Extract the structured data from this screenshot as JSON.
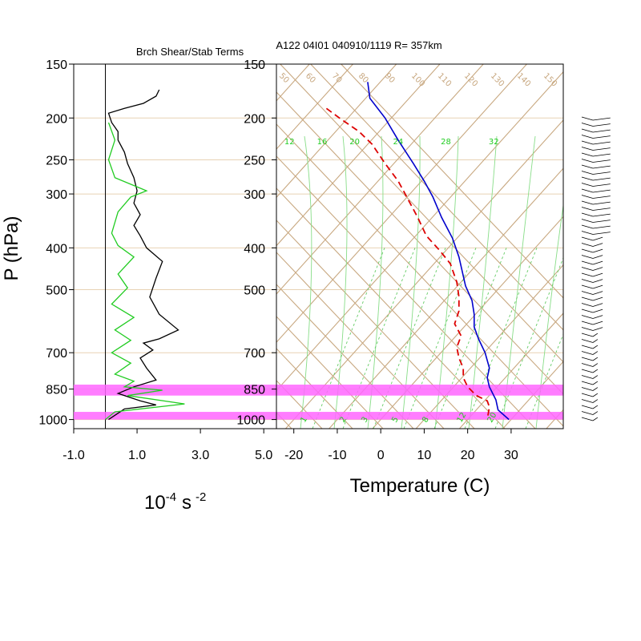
{
  "chart_data": [
    {
      "type": "line",
      "title": "Brch Shear/Stab Terms",
      "xlabel_base": "10",
      "xlabel_exp": "-4",
      "xlabel_unit": "s",
      "xlabel_unit_exp": "-2",
      "ylabel": "P (hPa)",
      "xlim": [
        -1.0,
        5.4
      ],
      "xticks": [
        "-1.0",
        "1.0",
        "3.0",
        "5.0"
      ],
      "xtick_values": [
        -1.0,
        1.0,
        3.0,
        5.0
      ],
      "pressure_ticks": [
        "150",
        "200",
        "250",
        "300",
        "400",
        "500",
        "700",
        "850",
        "1000"
      ],
      "pressure_values": [
        150,
        200,
        250,
        300,
        400,
        500,
        700,
        850,
        1000
      ],
      "grid": true,
      "series": [
        {
          "color": "#000000",
          "points": [
            [
              1.7,
              172
            ],
            [
              1.6,
              178
            ],
            [
              1.2,
              185
            ],
            [
              0.6,
              190
            ],
            [
              0.1,
              195
            ],
            [
              0.2,
              205
            ],
            [
              0.4,
              215
            ],
            [
              0.4,
              225
            ],
            [
              0.6,
              240
            ],
            [
              0.7,
              255
            ],
            [
              0.9,
              275
            ],
            [
              1.0,
              295
            ],
            [
              0.9,
              315
            ],
            [
              1.1,
              335
            ],
            [
              0.9,
              355
            ],
            [
              1.1,
              375
            ],
            [
              1.3,
              400
            ],
            [
              1.8,
              430
            ],
            [
              1.6,
              470
            ],
            [
              1.4,
              520
            ],
            [
              1.7,
              570
            ],
            [
              2.3,
              620
            ],
            [
              1.7,
              650
            ],
            [
              1.2,
              665
            ],
            [
              1.5,
              690
            ],
            [
              1.1,
              720
            ],
            [
              1.3,
              760
            ],
            [
              1.6,
              810
            ],
            [
              0.9,
              840
            ],
            [
              0.4,
              870
            ],
            [
              1.1,
              905
            ],
            [
              1.6,
              925
            ],
            [
              0.6,
              945
            ],
            [
              0.1,
              1000
            ]
          ]
        },
        {
          "color": "#22cc22",
          "points": [
            [
              0.1,
              205
            ],
            [
              0.3,
              225
            ],
            [
              0.1,
              250
            ],
            [
              0.3,
              275
            ],
            [
              1.3,
              295
            ],
            [
              0.8,
              305
            ],
            [
              0.4,
              330
            ],
            [
              0.2,
              370
            ],
            [
              0.4,
              395
            ],
            [
              0.9,
              420
            ],
            [
              0.4,
              460
            ],
            [
              0.7,
              495
            ],
            [
              0.2,
              540
            ],
            [
              0.9,
              580
            ],
            [
              0.3,
              620
            ],
            [
              0.8,
              655
            ],
            [
              0.2,
              700
            ],
            [
              0.8,
              740
            ],
            [
              0.3,
              785
            ],
            [
              0.9,
              815
            ],
            [
              0.6,
              840
            ],
            [
              1.8,
              855
            ],
            [
              0.7,
              880
            ],
            [
              2.5,
              920
            ],
            [
              0.3,
              960
            ],
            [
              0.0,
              1000
            ]
          ]
        }
      ]
    },
    {
      "type": "line",
      "title": "A122 04I01 040910/1119 R= 357km",
      "xlabel": "Temperature (C)",
      "xlim": [
        -24,
        42
      ],
      "xticks": [
        "-20",
        "-10",
        "0",
        "10",
        "20",
        "30"
      ],
      "xtick_values": [
        -20,
        -10,
        0,
        10,
        20,
        30
      ],
      "pressure_ticks": [
        "150",
        "200",
        "250",
        "300",
        "400",
        "500",
        "700",
        "850",
        "1000"
      ],
      "pressure_values": [
        150,
        200,
        250,
        300,
        400,
        500,
        700,
        850,
        1000
      ],
      "mixing_ratio_labels": [
        "12",
        "16",
        "20",
        "24",
        "28",
        "32"
      ],
      "mixing_ratio_label_temps": [
        -21,
        -13.5,
        -6,
        4,
        15,
        26
      ],
      "mixing_ratio_bottom_labels": [
        "1",
        "2",
        "3",
        "5",
        "8",
        "12",
        "20"
      ],
      "mixing_ratio_bottom_temps": [
        -17.5,
        -8.5,
        -3.5,
        3.5,
        10.5,
        18.5,
        25.5
      ],
      "temperature_series": {
        "name": "",
        "color": "#0000cc",
        "points": [
          [
            -3.0,
            165
          ],
          [
            -2.5,
            180
          ],
          [
            1.0,
            200
          ],
          [
            4.0,
            225
          ],
          [
            7.5,
            255
          ],
          [
            10.0,
            280
          ],
          [
            12.0,
            305
          ],
          [
            14.0,
            340
          ],
          [
            16.5,
            380
          ],
          [
            18.0,
            420
          ],
          [
            19.5,
            490
          ],
          [
            21.0,
            530
          ],
          [
            21.5,
            570
          ],
          [
            21.5,
            610
          ],
          [
            22.5,
            650
          ],
          [
            24.0,
            700
          ],
          [
            25.0,
            760
          ],
          [
            24.5,
            800
          ],
          [
            25.0,
            840
          ],
          [
            26.5,
            900
          ],
          [
            27.0,
            950
          ],
          [
            29.5,
            1000
          ]
        ]
      },
      "dewpoint_series": {
        "name": "",
        "color": "#dd0000",
        "points": [
          [
            -12.5,
            190
          ],
          [
            -9.5,
            200
          ],
          [
            -5.0,
            215
          ],
          [
            -2.0,
            230
          ],
          [
            1.0,
            255
          ],
          [
            4.0,
            280
          ],
          [
            6.0,
            305
          ],
          [
            8.5,
            340
          ],
          [
            10.5,
            375
          ],
          [
            13.5,
            405
          ],
          [
            16.0,
            435
          ],
          [
            17.5,
            480
          ],
          [
            18.0,
            520
          ],
          [
            18.0,
            560
          ],
          [
            17.0,
            600
          ],
          [
            18.5,
            640
          ],
          [
            17.5,
            680
          ],
          [
            18.0,
            720
          ],
          [
            19.0,
            760
          ],
          [
            19.0,
            800
          ],
          [
            20.0,
            840
          ],
          [
            22.0,
            880
          ],
          [
            24.5,
            905
          ],
          [
            25.0,
            935
          ],
          [
            24.5,
            1000
          ]
        ]
      },
      "shaded_layers": [
        [
          830,
          880
        ],
        [
          960,
          1000
        ]
      ],
      "shade_color": "#ff66ff"
    }
  ]
}
